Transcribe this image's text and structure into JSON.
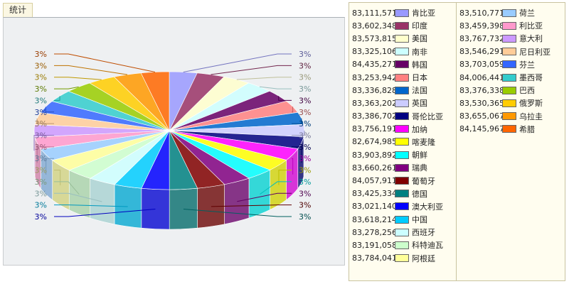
{
  "tab_title": "统计",
  "chart_data": {
    "type": "pie",
    "title": "",
    "slice_label": "3%",
    "slices": [
      {
        "name": "肯比亚",
        "value": 83111571,
        "color": "#9999ff"
      },
      {
        "name": "印度",
        "value": 83602348,
        "color": "#993366"
      },
      {
        "name": "美国",
        "value": 83573815,
        "color": "#ffffcc"
      },
      {
        "name": "南非",
        "value": 83325106,
        "color": "#ccffff"
      },
      {
        "name": "韩国",
        "value": 84435271,
        "color": "#660066"
      },
      {
        "name": "日本",
        "value": 83253942,
        "color": "#ff8080"
      },
      {
        "name": "法国",
        "value": 83336828,
        "color": "#0066cc"
      },
      {
        "name": "英国",
        "value": 83363202,
        "color": "#ccccff"
      },
      {
        "name": "哥伦比亚",
        "value": 83386702,
        "color": "#000080"
      },
      {
        "name": "加纳",
        "value": 83756191,
        "color": "#ff00ff"
      },
      {
        "name": "喀麦隆",
        "value": 82674985,
        "color": "#ffff00"
      },
      {
        "name": "朝鲜",
        "value": 83903892,
        "color": "#00ffff"
      },
      {
        "name": "瑞典",
        "value": 83660261,
        "color": "#800080"
      },
      {
        "name": "葡萄牙",
        "value": 84057911,
        "color": "#800000"
      },
      {
        "name": "德国",
        "value": 83425334,
        "color": "#008080"
      },
      {
        "name": "澳大利亚",
        "value": 83021140,
        "color": "#0000ff"
      },
      {
        "name": "中国",
        "value": 83618214,
        "color": "#00ccff"
      },
      {
        "name": "西班牙",
        "value": 83278256,
        "color": "#ccffff"
      },
      {
        "name": "科特迪瓦",
        "value": 83191058,
        "color": "#ccffcc"
      },
      {
        "name": "阿根廷",
        "value": 83784041,
        "color": "#ffff99"
      },
      {
        "name": "荷兰",
        "value": 83510771,
        "color": "#99ccff"
      },
      {
        "name": "利比亚",
        "value": 83459398,
        "color": "#ff99cc"
      },
      {
        "name": "意大利",
        "value": 83767732,
        "color": "#cc99ff"
      },
      {
        "name": "尼日利亚",
        "value": 83546291,
        "color": "#ffcc99"
      },
      {
        "name": "芬兰",
        "value": 83703059,
        "color": "#3366ff"
      },
      {
        "name": "墨西哥",
        "value": 84006441,
        "color": "#33cccc"
      },
      {
        "name": "巴西",
        "value": 83376338,
        "color": "#99cc00"
      },
      {
        "name": "俄罗斯",
        "value": 83530365,
        "color": "#ffcc00"
      },
      {
        "name": "乌拉圭",
        "value": 83655067,
        "color": "#ff9900"
      },
      {
        "name": "希腊",
        "value": 84145967,
        "color": "#ff6600"
      }
    ]
  }
}
